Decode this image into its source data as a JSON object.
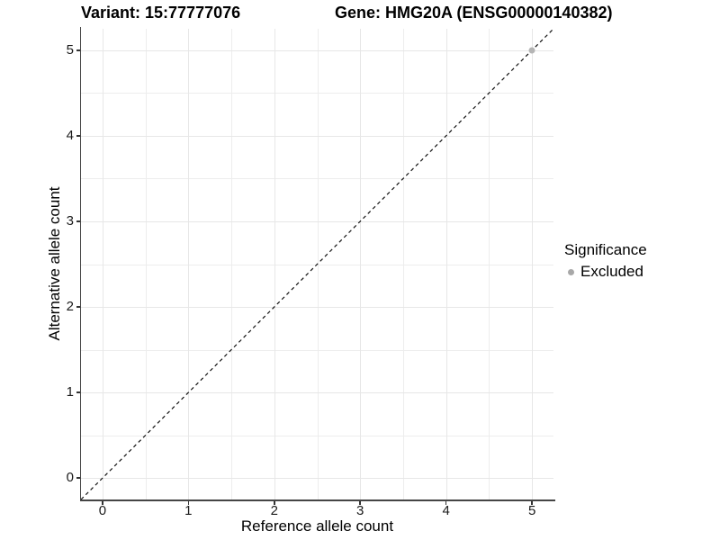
{
  "titles": {
    "variant": "Variant: 15:77777076",
    "gene": "Gene: HMG20A (ENSG00000140382)"
  },
  "legend": {
    "title": "Significance",
    "entries": [
      {
        "label": "Excluded",
        "color": "#a8a8a8"
      }
    ]
  },
  "colors": {
    "grid_major": "#e7e7e7",
    "grid_minor": "#ededed",
    "axis_line": "#454545",
    "tick_mark": "#333333",
    "reference_line": "#111111",
    "excluded_point": "#b5b5b5"
  },
  "chart_data": {
    "type": "scatter",
    "title": "Variant: 15:77777076 / Gene: HMG20A (ENSG00000140382)",
    "xlabel": "Reference allele count",
    "ylabel": "Alternative allele count",
    "xlim": [
      -0.25,
      5.25
    ],
    "ylim": [
      -0.25,
      5.25
    ],
    "x_major_ticks": [
      0,
      1,
      2,
      3,
      4,
      5
    ],
    "y_major_ticks": [
      0,
      1,
      2,
      3,
      4,
      5
    ],
    "x_minor_ticks": [
      0.5,
      1.5,
      2.5,
      3.5,
      4.5
    ],
    "y_minor_ticks": [
      0.5,
      1.5,
      2.5,
      3.5,
      4.5
    ],
    "grid": true,
    "legend_position": "right",
    "legend_title": "Significance",
    "series": [
      {
        "name": "Excluded",
        "color": "#b5b5b5",
        "points": [
          {
            "x": 5,
            "y": 5
          }
        ]
      }
    ],
    "reference_line": {
      "kind": "identity",
      "style": "dashed",
      "from": [
        -0.25,
        -0.25
      ],
      "to": [
        5.25,
        5.25
      ]
    }
  }
}
